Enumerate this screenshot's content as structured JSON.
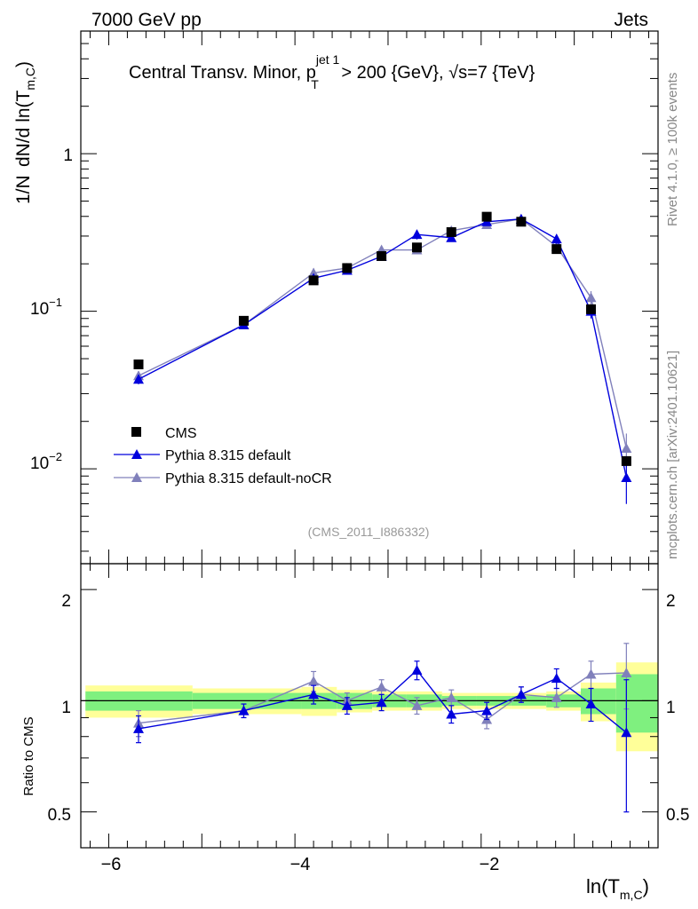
{
  "header": {
    "left": "7000 GeV pp",
    "right": "Jets"
  },
  "side_labels": {
    "rivet": "Rivet 4.1.0, ≥ 100k events",
    "mcplots": "mcplots.cern.ch [arXiv:2401.10621]"
  },
  "main_plot": {
    "title_pre": "Central Transv. Minor, p",
    "title_sup": "jet 1",
    "title_sub": "T",
    "title_mid": " > 200 {GeV}, ",
    "title_sqrt": "√",
    "title_post": "s=7 {TeV}",
    "ylabel_left": "1/N",
    "ylabel_right": "dN/d ln(T",
    "ylabel_sub": "m,C",
    "ylabel_close": ")",
    "analysis_id": "(CMS_2011_I886332)",
    "ytick_labels": [
      "1",
      "10",
      "10"
    ],
    "ytick_exps": [
      "",
      "−1",
      "−2"
    ]
  },
  "ratio_plot": {
    "ylabel": "Ratio to CMS",
    "ytick_labels": [
      "2",
      "1",
      "0.5"
    ]
  },
  "xaxis": {
    "label": "ln(T",
    "label_sub": "m,C",
    "label_close": ")",
    "tick_labels": [
      "−6",
      "−4",
      "−2"
    ]
  },
  "legend": {
    "entries": [
      "CMS",
      "Pythia 8.315 default",
      "Pythia 8.315 default-noCR"
    ]
  },
  "colors": {
    "cms": "#000000",
    "default": "#0000dd",
    "nocr": "#8080bb",
    "band_inner": "#7ff07f",
    "band_outer": "#ffff99"
  },
  "chart_data": {
    "type": "line",
    "x_scale": "linear",
    "y_scale": "log",
    "xlim": [
      -6.3,
      -0.1
    ],
    "ylim": [
      0.0025,
      6.0
    ],
    "ratio_ylim": [
      0.4,
      2.35
    ],
    "x": [
      -5.68,
      -4.55,
      -3.8,
      -3.44,
      -3.07,
      -2.69,
      -2.32,
      -1.94,
      -1.57,
      -1.19,
      -0.82,
      -0.44
    ],
    "bin_edges": [
      -6.25,
      -5.1,
      -3.93,
      -3.55,
      -3.17,
      -2.8,
      -2.42,
      -2.05,
      -1.68,
      -1.3,
      -0.93,
      -0.55,
      -0.1
    ],
    "series": [
      {
        "name": "CMS",
        "values": [
          0.046,
          0.087,
          0.157,
          0.188,
          0.224,
          0.254,
          0.318,
          0.398,
          0.37,
          0.248,
          0.103,
          0.0112
        ],
        "band_inner": [
          0.06,
          0.05,
          0.05,
          0.05,
          0.04,
          0.04,
          0.03,
          0.03,
          0.03,
          0.04,
          0.08,
          0.18
        ],
        "band_outer": [
          0.1,
          0.08,
          0.09,
          0.07,
          0.06,
          0.06,
          0.05,
          0.05,
          0.05,
          0.06,
          0.12,
          0.27
        ]
      },
      {
        "name": "Pythia 8.315 default",
        "values": [
          0.037,
          0.082,
          0.162,
          0.182,
          0.223,
          0.307,
          0.293,
          0.37,
          0.385,
          0.288,
          0.1,
          0.0088
        ],
        "ratio": [
          0.84,
          0.94,
          1.04,
          0.97,
          0.99,
          1.21,
          0.92,
          0.94,
          1.04,
          1.15,
          0.98,
          0.82
        ],
        "ratio_err": [
          0.07,
          0.04,
          0.06,
          0.05,
          0.05,
          0.07,
          0.05,
          0.05,
          0.05,
          0.07,
          0.1,
          0.32
        ]
      },
      {
        "name": "Pythia 8.315 default-noCR",
        "values": [
          0.039,
          0.082,
          0.175,
          0.188,
          0.245,
          0.245,
          0.325,
          0.355,
          0.385,
          0.258,
          0.122,
          0.0135
        ],
        "ratio": [
          0.87,
          0.94,
          1.13,
          1.0,
          1.09,
          0.97,
          1.02,
          0.89,
          1.04,
          1.02,
          1.18,
          1.19
        ],
        "ratio_err": [
          0.07,
          0.04,
          0.07,
          0.05,
          0.05,
          0.05,
          0.05,
          0.05,
          0.05,
          0.06,
          0.1,
          0.24
        ]
      }
    ]
  }
}
